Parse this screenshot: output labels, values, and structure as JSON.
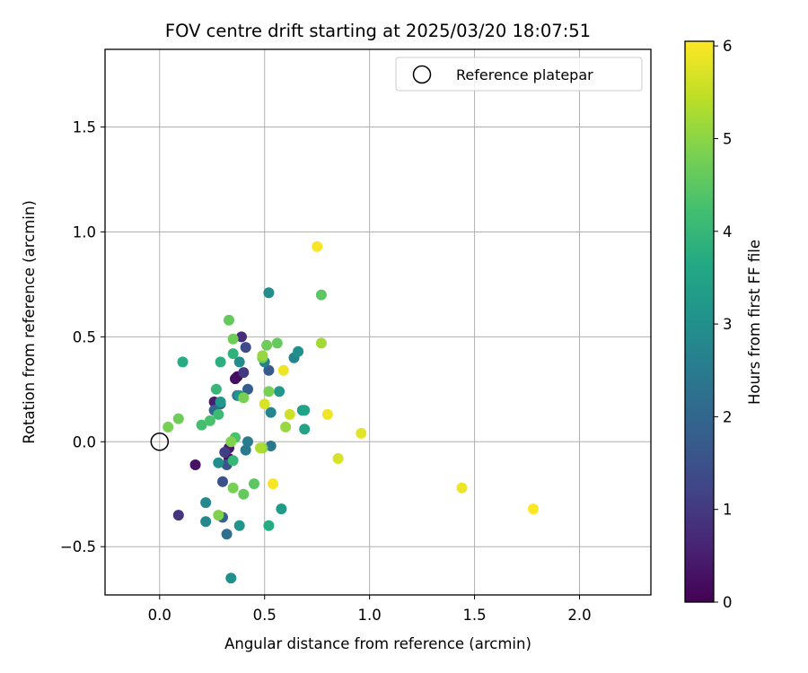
{
  "chart_data": {
    "type": "scatter",
    "title": "FOV centre drift starting at 2025/03/20 18:07:51",
    "xlabel": "Angular distance from reference (arcmin)",
    "ylabel": "Rotation from reference (arcmin)",
    "xlim": [
      -0.26,
      2.34
    ],
    "ylim": [
      -0.73,
      1.87
    ],
    "xticks": [
      0.0,
      0.5,
      1.0,
      1.5,
      2.0
    ],
    "xtick_labels": [
      "0.0",
      "0.5",
      "1.0",
      "1.5",
      "2.0"
    ],
    "yticks": [
      -0.5,
      0.0,
      0.5,
      1.0,
      1.5
    ],
    "ytick_labels": [
      "−0.5",
      "0.0",
      "0.5",
      "1.0",
      "1.5"
    ],
    "grid": true,
    "legend": {
      "placement": "top-right",
      "entries": [
        "Reference platepar"
      ]
    },
    "reference": {
      "x": 0.0,
      "y": 0.0
    },
    "colorbar": {
      "label": "Hours from first FF file",
      "range": [
        0,
        6.05
      ],
      "ticks": [
        0,
        1,
        2,
        3,
        4,
        5,
        6
      ],
      "tick_labels": [
        "0",
        "1",
        "2",
        "3",
        "4",
        "5",
        "6"
      ],
      "colormap": "viridis"
    },
    "points": [
      {
        "x": 0.37,
        "y": 0.31,
        "c": 0.1
      },
      {
        "x": 0.17,
        "y": -0.11,
        "c": 0.3
      },
      {
        "x": 0.36,
        "y": 0.3,
        "c": 0.2
      },
      {
        "x": 0.26,
        "y": 0.19,
        "c": 0.5
      },
      {
        "x": 0.33,
        "y": -0.08,
        "c": 0.3
      },
      {
        "x": 0.33,
        "y": -0.03,
        "c": 0.4
      },
      {
        "x": 0.09,
        "y": -0.35,
        "c": 0.9
      },
      {
        "x": 0.39,
        "y": 0.5,
        "c": 0.8
      },
      {
        "x": 0.4,
        "y": 0.33,
        "c": 1.0
      },
      {
        "x": 0.31,
        "y": -0.05,
        "c": 1.1
      },
      {
        "x": 0.41,
        "y": 0.45,
        "c": 1.4
      },
      {
        "x": 0.3,
        "y": -0.19,
        "c": 1.5
      },
      {
        "x": 0.32,
        "y": -0.11,
        "c": 1.6
      },
      {
        "x": 0.52,
        "y": 0.34,
        "c": 1.7
      },
      {
        "x": 0.42,
        "y": 0.25,
        "c": 1.8
      },
      {
        "x": 0.3,
        "y": -0.36,
        "c": 1.9
      },
      {
        "x": 0.26,
        "y": 0.15,
        "c": 2.0
      },
      {
        "x": 0.29,
        "y": 0.18,
        "c": 2.1
      },
      {
        "x": 0.32,
        "y": -0.44,
        "c": 2.2
      },
      {
        "x": 0.37,
        "y": 0.22,
        "c": 2.3
      },
      {
        "x": 0.41,
        "y": -0.04,
        "c": 2.4
      },
      {
        "x": 0.53,
        "y": -0.02,
        "c": 2.4
      },
      {
        "x": 0.42,
        "y": 0.0,
        "c": 2.5
      },
      {
        "x": 0.5,
        "y": 0.38,
        "c": 2.6
      },
      {
        "x": 0.64,
        "y": 0.4,
        "c": 2.7
      },
      {
        "x": 0.53,
        "y": 0.14,
        "c": 2.7
      },
      {
        "x": 0.22,
        "y": -0.29,
        "c": 2.8
      },
      {
        "x": 0.22,
        "y": -0.38,
        "c": 2.8
      },
      {
        "x": 0.28,
        "y": -0.1,
        "c": 2.9
      },
      {
        "x": 0.38,
        "y": 0.38,
        "c": 2.9
      },
      {
        "x": 0.52,
        "y": 0.71,
        "c": 2.9
      },
      {
        "x": 0.66,
        "y": 0.43,
        "c": 3.0
      },
      {
        "x": 0.34,
        "y": -0.65,
        "c": 3.0
      },
      {
        "x": 0.38,
        "y": -0.4,
        "c": 3.1
      },
      {
        "x": 0.38,
        "y": 0.22,
        "c": 3.1
      },
      {
        "x": 0.29,
        "y": 0.19,
        "c": 3.2
      },
      {
        "x": 0.57,
        "y": 0.24,
        "c": 3.2
      },
      {
        "x": 0.58,
        "y": -0.32,
        "c": 3.3
      },
      {
        "x": 0.68,
        "y": 0.15,
        "c": 3.4
      },
      {
        "x": 0.69,
        "y": 0.15,
        "c": 3.5
      },
      {
        "x": 0.69,
        "y": 0.06,
        "c": 3.5
      },
      {
        "x": 0.52,
        "y": -0.4,
        "c": 3.7
      },
      {
        "x": 0.11,
        "y": 0.38,
        "c": 3.7
      },
      {
        "x": 0.29,
        "y": 0.38,
        "c": 3.8
      },
      {
        "x": 0.35,
        "y": 0.42,
        "c": 3.9
      },
      {
        "x": 0.35,
        "y": -0.09,
        "c": 4.0
      },
      {
        "x": 0.27,
        "y": 0.25,
        "c": 4.0
      },
      {
        "x": 0.28,
        "y": 0.13,
        "c": 4.1
      },
      {
        "x": 0.2,
        "y": 0.08,
        "c": 4.2
      },
      {
        "x": 0.24,
        "y": 0.1,
        "c": 4.3
      },
      {
        "x": 0.36,
        "y": 0.02,
        "c": 4.3
      },
      {
        "x": 0.77,
        "y": 0.7,
        "c": 4.5
      },
      {
        "x": 0.45,
        "y": -0.2,
        "c": 4.5
      },
      {
        "x": 0.4,
        "y": -0.25,
        "c": 4.6
      },
      {
        "x": 0.33,
        "y": 0.58,
        "c": 4.6
      },
      {
        "x": 0.56,
        "y": 0.47,
        "c": 4.6
      },
      {
        "x": 0.35,
        "y": 0.49,
        "c": 4.7
      },
      {
        "x": 0.49,
        "y": 0.4,
        "c": 4.7
      },
      {
        "x": 0.51,
        "y": 0.46,
        "c": 4.7
      },
      {
        "x": 0.09,
        "y": 0.11,
        "c": 4.7
      },
      {
        "x": 0.04,
        "y": 0.07,
        "c": 4.8
      },
      {
        "x": 0.52,
        "y": 0.24,
        "c": 4.8
      },
      {
        "x": 0.35,
        "y": -0.22,
        "c": 4.8
      },
      {
        "x": 0.4,
        "y": 0.21,
        "c": 4.8
      },
      {
        "x": 0.28,
        "y": -0.35,
        "c": 4.9
      },
      {
        "x": 0.34,
        "y": 0.0,
        "c": 4.9
      },
      {
        "x": 0.49,
        "y": -0.03,
        "c": 5.0
      },
      {
        "x": 0.49,
        "y": 0.41,
        "c": 5.1
      },
      {
        "x": 0.6,
        "y": 0.07,
        "c": 5.1
      },
      {
        "x": 0.77,
        "y": 0.47,
        "c": 5.2
      },
      {
        "x": 0.48,
        "y": -0.03,
        "c": 5.3
      },
      {
        "x": 0.62,
        "y": 0.13,
        "c": 5.6
      },
      {
        "x": 0.85,
        "y": -0.08,
        "c": 5.7
      },
      {
        "x": 0.5,
        "y": 0.18,
        "c": 5.7
      },
      {
        "x": 0.96,
        "y": 0.04,
        "c": 5.8
      },
      {
        "x": 0.59,
        "y": 0.34,
        "c": 5.9
      },
      {
        "x": 0.8,
        "y": 0.13,
        "c": 5.9
      },
      {
        "x": 1.44,
        "y": -0.22,
        "c": 5.9
      },
      {
        "x": 0.54,
        "y": -0.2,
        "c": 6.0
      },
      {
        "x": 0.75,
        "y": 0.93,
        "c": 6.0
      },
      {
        "x": 1.78,
        "y": -0.32,
        "c": 6.05
      }
    ]
  }
}
